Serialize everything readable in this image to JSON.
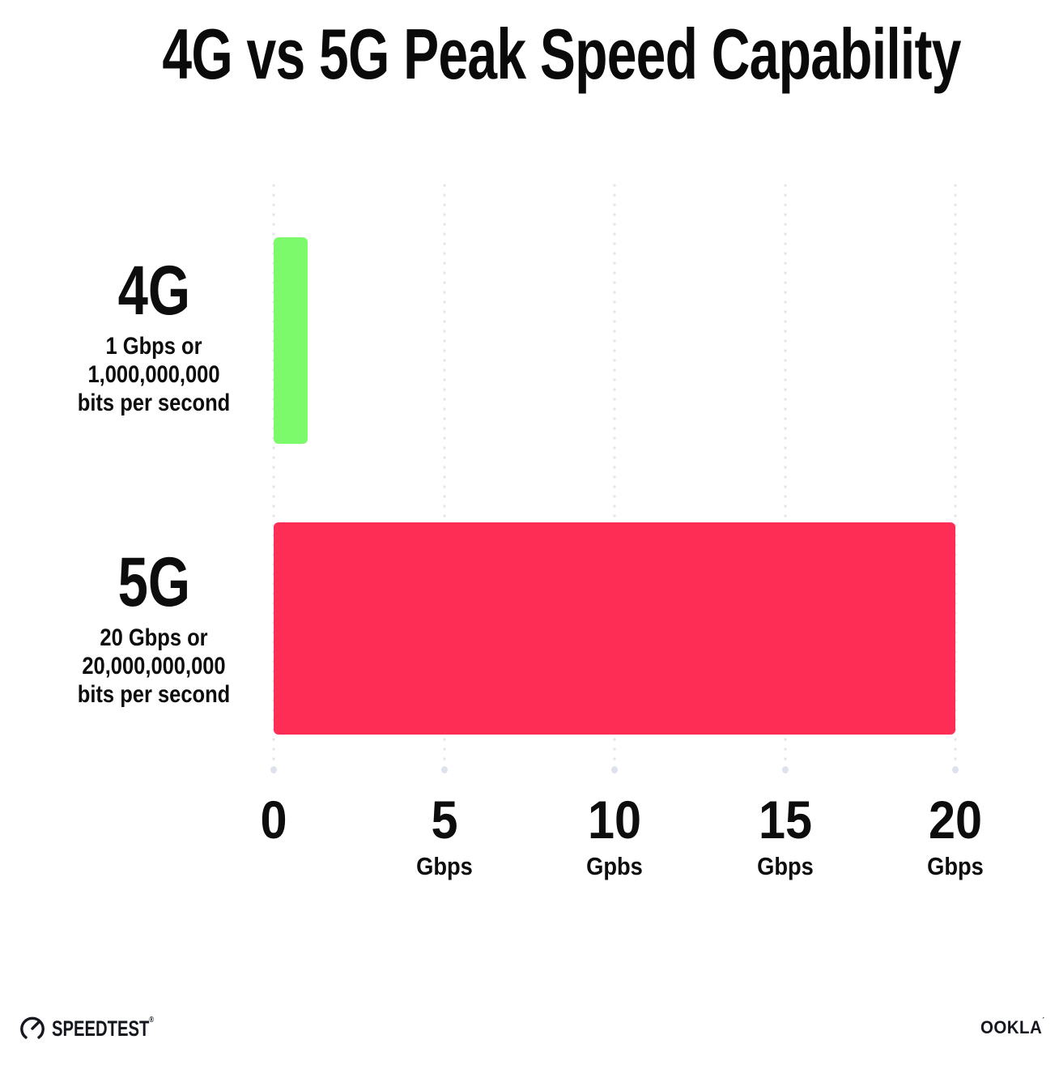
{
  "chart_data": {
    "type": "bar",
    "orientation": "horizontal",
    "title": "4G vs 5G Peak Speed Capability",
    "categories": [
      "4G",
      "5G"
    ],
    "values": [
      1,
      20
    ],
    "value_unit": "Gbps",
    "bar_colors": [
      "#7dfa6b",
      "#fd2d55"
    ],
    "row_labels": [
      {
        "name": "4G",
        "desc_lines": [
          "1 Gbps or",
          "1,000,000,000",
          "bits per second"
        ]
      },
      {
        "name": "5G",
        "desc_lines": [
          "20 Gbps or",
          "20,000,000,000",
          "bits per second"
        ]
      }
    ],
    "xlim": [
      0,
      20
    ],
    "x_ticks": [
      {
        "value": 0,
        "label": "0",
        "unit": ""
      },
      {
        "value": 5,
        "label": "5",
        "unit": "Gbps"
      },
      {
        "value": 10,
        "label": "10",
        "unit": "Gpbs"
      },
      {
        "value": 15,
        "label": "15",
        "unit": "Gbps"
      },
      {
        "value": 20,
        "label": "20",
        "unit": "Gbps"
      }
    ],
    "grid": "vertical dotted",
    "legend": "none"
  },
  "footer": {
    "speedtest_label": "SPEEDTEST",
    "speedtest_mark": "®",
    "ookla_label": "OOKLA",
    "ookla_mark": "´"
  }
}
